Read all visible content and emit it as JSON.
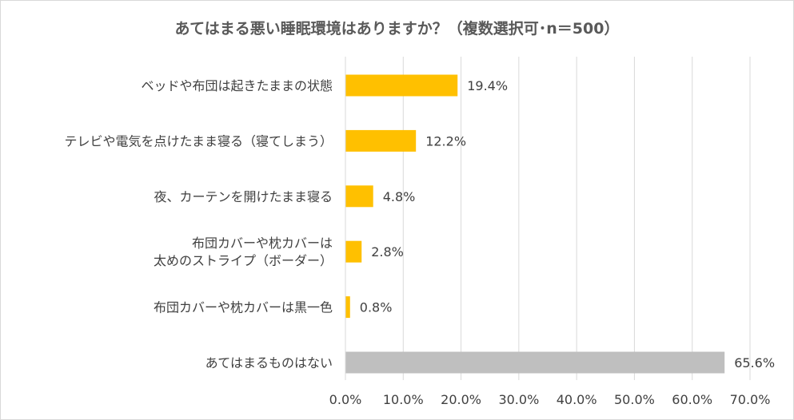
{
  "chart_data": {
    "type": "bar",
    "orientation": "horizontal",
    "title": "あてはまる悪い睡眠環境はありますか？（複数選択可･n＝500）",
    "categories": [
      [
        "ベッドや布団は起きたままの状態"
      ],
      [
        "テレビや電気を点けたまま寝る（寝てしまう）"
      ],
      [
        "夜、カーテンを開けたまま寝る"
      ],
      [
        "布団カバーや枕カバーは",
        "太めのストライプ（ボーダー）"
      ],
      [
        "布団カバーや枕カバーは黒一色"
      ],
      [
        "あてはまるものはない"
      ]
    ],
    "values": [
      19.4,
      12.2,
      4.8,
      2.8,
      0.8,
      65.6
    ],
    "value_labels": [
      "19.4%",
      "12.2%",
      "4.8%",
      "2.8%",
      "0.8%",
      "65.6%"
    ],
    "bar_colors": [
      "#FFC000",
      "#FFC000",
      "#FFC000",
      "#FFC000",
      "#FFC000",
      "#BFBFBF"
    ],
    "xlim": [
      0,
      70
    ],
    "xticks": [
      0,
      10,
      20,
      30,
      40,
      50,
      60,
      70
    ],
    "xtick_labels": [
      "0.0%",
      "10.0%",
      "20.0%",
      "30.0%",
      "40.0%",
      "50.0%",
      "60.0%",
      "70.0%"
    ],
    "grid": true,
    "legend": "none"
  }
}
